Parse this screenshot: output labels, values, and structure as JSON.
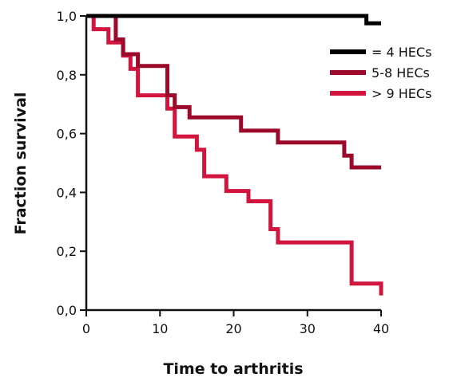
{
  "chart_data": {
    "type": "line",
    "subtype": "step",
    "title": "",
    "xlabel": "Time to arthritis",
    "ylabel": "Fraction survival",
    "xlim": [
      0,
      40
    ],
    "ylim": [
      0.0,
      1.0
    ],
    "x_ticks": [
      0,
      10,
      20,
      30,
      40
    ],
    "x_tick_labels": [
      "0",
      "10",
      "20",
      "30",
      "40"
    ],
    "y_ticks": [
      0.0,
      0.2,
      0.4,
      0.6,
      0.8,
      1.0
    ],
    "y_tick_labels": [
      "0,0",
      "0,2",
      "0,4",
      "0,6",
      "0,8",
      "1,0"
    ],
    "grid": false,
    "legend_position": "top-right",
    "series": [
      {
        "name": "= 4 HECs",
        "color": "#000000",
        "x": [
          0,
          38,
          38,
          40
        ],
        "y": [
          1.0,
          1.0,
          0.975,
          0.975
        ]
      },
      {
        "name": "5-8 HECs",
        "color": "#9b0a2a",
        "x": [
          0,
          4,
          4,
          5,
          5,
          6,
          6,
          7,
          7,
          11,
          11,
          12,
          12,
          14,
          14,
          21,
          21,
          26,
          26,
          35,
          35,
          36,
          36,
          40
        ],
        "y": [
          1.0,
          1.0,
          0.92,
          0.92,
          0.87,
          0.87,
          0.87,
          0.87,
          0.83,
          0.83,
          0.73,
          0.73,
          0.69,
          0.69,
          0.655,
          0.655,
          0.61,
          0.61,
          0.57,
          0.57,
          0.525,
          0.525,
          0.485,
          0.485
        ]
      },
      {
        "name": "> 9 HECs",
        "color": "#d1153e",
        "x": [
          0,
          1,
          1,
          3,
          3,
          5,
          5,
          6,
          6,
          7,
          7,
          11,
          11,
          12,
          12,
          15,
          15,
          16,
          16,
          19,
          19,
          22,
          22,
          25,
          25,
          26,
          26,
          36,
          36,
          40,
          40
        ],
        "y": [
          1.0,
          1.0,
          0.955,
          0.955,
          0.91,
          0.91,
          0.865,
          0.865,
          0.82,
          0.82,
          0.73,
          0.73,
          0.685,
          0.685,
          0.59,
          0.59,
          0.545,
          0.545,
          0.455,
          0.455,
          0.405,
          0.405,
          0.37,
          0.37,
          0.275,
          0.275,
          0.23,
          0.23,
          0.09,
          0.09,
          0.05
        ]
      }
    ]
  }
}
